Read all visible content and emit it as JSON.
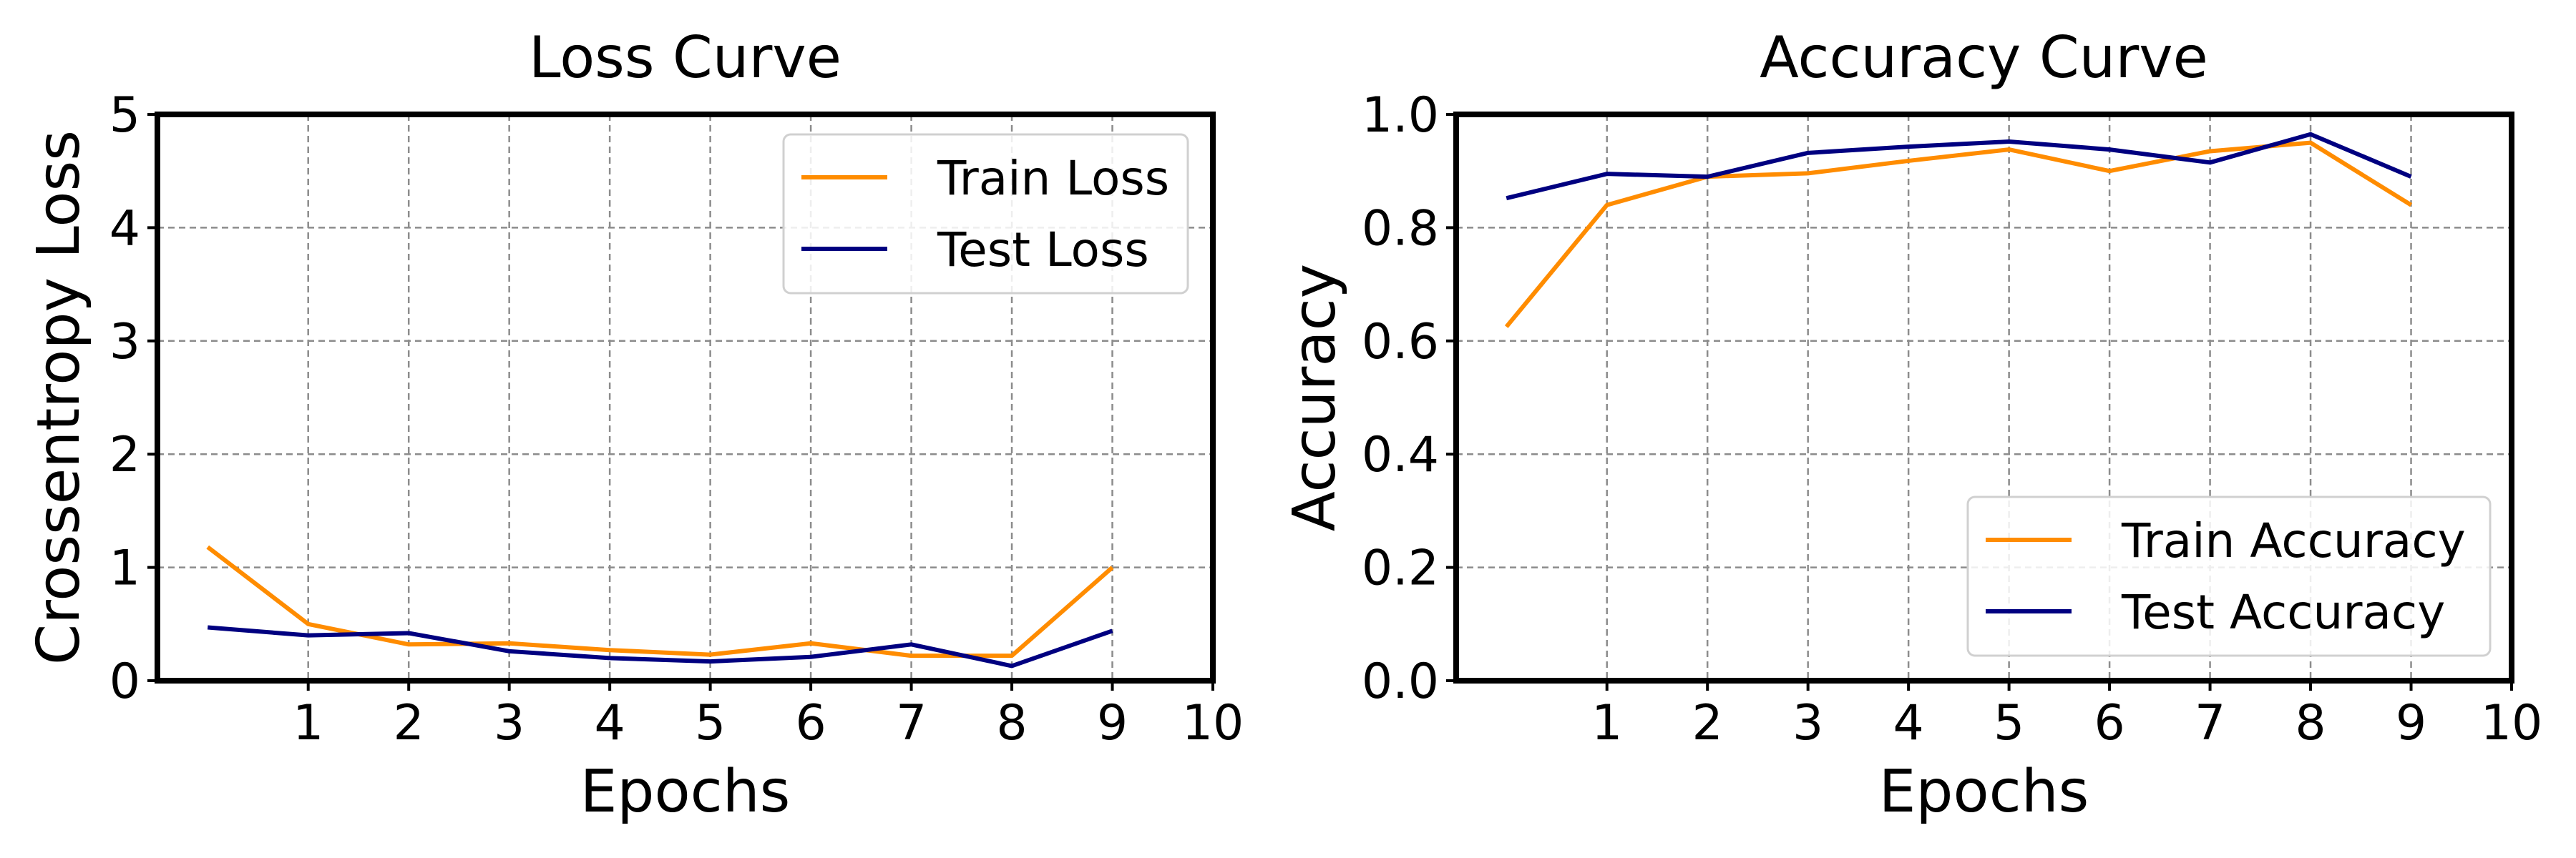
{
  "colors": {
    "train": "#ff8c00",
    "test": "#000080"
  },
  "chart_data": [
    {
      "type": "line",
      "title": "Loss Curve",
      "xlabel": "Epochs",
      "ylabel": "Crossentropy Loss",
      "xlim": [
        -0.5,
        10
      ],
      "ylim": [
        0,
        5
      ],
      "xticks": [
        1,
        2,
        3,
        4,
        5,
        6,
        7,
        8,
        9,
        10
      ],
      "yticks": [
        0,
        1,
        2,
        3,
        4,
        5
      ],
      "ytick_labels": [
        "0",
        "1",
        "2",
        "3",
        "4",
        "5"
      ],
      "grid": true,
      "legend_position": "upper right",
      "x": [
        0,
        1,
        2,
        3,
        4,
        5,
        6,
        7,
        8,
        9
      ],
      "series": [
        {
          "name": "Train Loss",
          "color_key": "train",
          "values": [
            1.18,
            0.5,
            0.32,
            0.33,
            0.27,
            0.23,
            0.33,
            0.22,
            0.22,
            1.0
          ]
        },
        {
          "name": "Test Loss",
          "color_key": "test",
          "values": [
            0.47,
            0.4,
            0.42,
            0.26,
            0.2,
            0.17,
            0.21,
            0.32,
            0.13,
            0.44
          ]
        }
      ]
    },
    {
      "type": "line",
      "title": "Accuracy Curve",
      "xlabel": "Epochs",
      "ylabel": "Accuracy",
      "xlim": [
        -0.5,
        10
      ],
      "ylim": [
        0,
        1
      ],
      "xticks": [
        1,
        2,
        3,
        4,
        5,
        6,
        7,
        8,
        9,
        10
      ],
      "yticks": [
        0,
        0.2,
        0.4,
        0.6,
        0.8,
        1.0
      ],
      "ytick_labels": [
        "0.0",
        "0.2",
        "0.4",
        "0.6",
        "0.8",
        "1.0"
      ],
      "grid": true,
      "legend_position": "lower right",
      "x": [
        0,
        1,
        2,
        3,
        4,
        5,
        6,
        7,
        8,
        9
      ],
      "series": [
        {
          "name": "Train Accuracy",
          "color_key": "train",
          "values": [
            0.625,
            0.84,
            0.89,
            0.896,
            0.918,
            0.938,
            0.9,
            0.935,
            0.95,
            0.84
          ]
        },
        {
          "name": "Test Accuracy",
          "color_key": "test",
          "values": [
            0.852,
            0.895,
            0.89,
            0.932,
            0.943,
            0.952,
            0.938,
            0.915,
            0.965,
            0.89
          ]
        }
      ]
    }
  ]
}
